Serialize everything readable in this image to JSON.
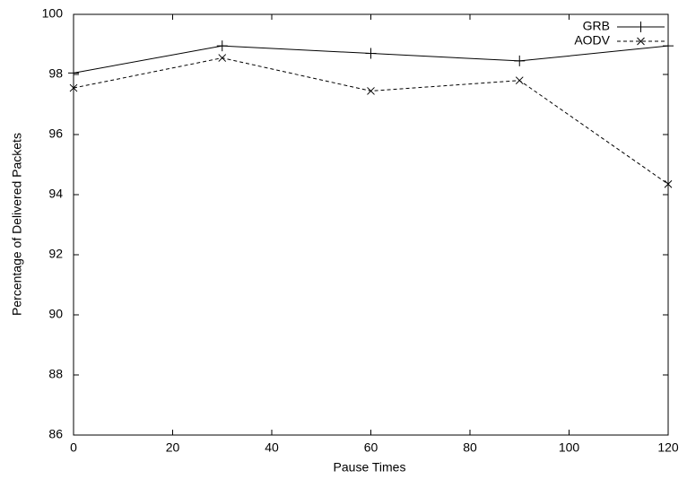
{
  "chart_data": {
    "type": "line",
    "xlabel": "Pause Times",
    "ylabel": "Percentage of Delivered Packets",
    "x": [
      0,
      30,
      60,
      90,
      120
    ],
    "series": [
      {
        "name": "GRB",
        "color": "#000000",
        "dash": false,
        "marker": "plus",
        "values": [
          98.05,
          98.95,
          98.7,
          98.45,
          98.95
        ]
      },
      {
        "name": "AODV",
        "color": "#000000",
        "dash": true,
        "marker": "cross",
        "values": [
          97.55,
          98.55,
          97.45,
          97.8,
          94.35
        ]
      }
    ],
    "xlim": [
      0,
      120
    ],
    "xticks": [
      0,
      20,
      40,
      60,
      80,
      100,
      120
    ],
    "ylim": [
      86,
      100
    ],
    "yticks": [
      86,
      88,
      90,
      92,
      94,
      96,
      98,
      100
    ],
    "grid": false,
    "legend": "top-right"
  }
}
